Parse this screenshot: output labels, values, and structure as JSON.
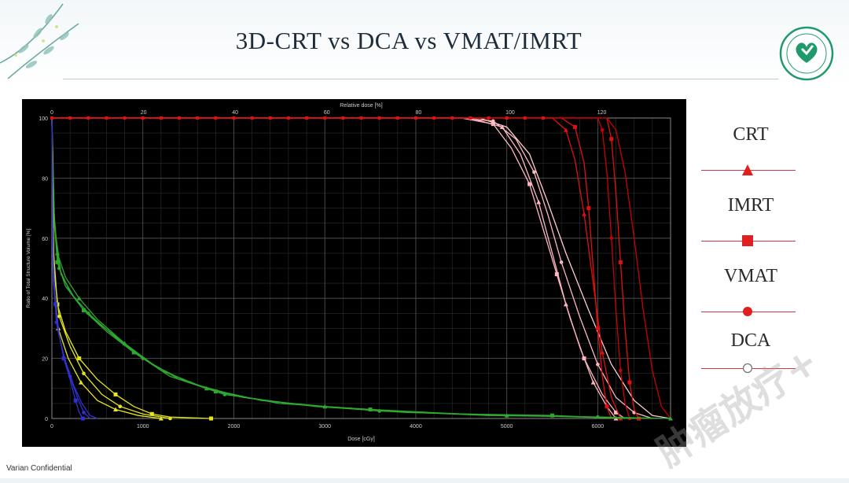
{
  "slide": {
    "title": "3D-CRT vs DCA vs VMAT/IMRT",
    "footer": "Varian Confidential",
    "watermark": "肿瘤放疗+",
    "logo_name": "hospital-logo"
  },
  "legend": {
    "items": [
      {
        "label": "CRT",
        "marker": "triangle",
        "color": "#e02020"
      },
      {
        "label": "IMRT",
        "marker": "square",
        "color": "#e02020"
      },
      {
        "label": "VMAT",
        "marker": "circle",
        "color": "#e02020"
      },
      {
        "label": "DCA",
        "marker": "circle-open",
        "color": "#e02020"
      }
    ]
  },
  "chart_data": {
    "type": "line",
    "title": "",
    "xlabel": "Dose [cGy]",
    "ylabel": "Ratio of Total Structure Volume [%]",
    "x2label": "Relative dose [%]",
    "xlim": [
      0,
      6800
    ],
    "ylim": [
      0,
      100
    ],
    "x_ticks": [
      0,
      1000,
      2000,
      3000,
      4000,
      5000,
      6000
    ],
    "y_ticks": [
      0,
      20,
      40,
      60,
      80,
      100
    ],
    "x2lim": [
      0,
      135
    ],
    "x2_ticks": [
      0,
      20,
      40,
      60,
      80,
      100,
      120
    ],
    "grid": true,
    "series": [
      {
        "color": "#ffb6c1",
        "marker": "circle",
        "points": [
          [
            0,
            100
          ],
          [
            4500,
            100
          ],
          [
            4850,
            99
          ],
          [
            5100,
            93
          ],
          [
            5300,
            82
          ],
          [
            5450,
            68
          ],
          [
            5600,
            52
          ],
          [
            5800,
            34
          ],
          [
            6000,
            18
          ],
          [
            6200,
            7
          ],
          [
            6400,
            2
          ],
          [
            6600,
            0
          ]
        ]
      },
      {
        "color": "#ffb6c1",
        "marker": "square",
        "points": [
          [
            0,
            100
          ],
          [
            4500,
            100
          ],
          [
            4850,
            98
          ],
          [
            5050,
            90
          ],
          [
            5250,
            78
          ],
          [
            5400,
            63
          ],
          [
            5550,
            48
          ],
          [
            5700,
            33
          ],
          [
            5850,
            20
          ],
          [
            6050,
            8
          ],
          [
            6200,
            2
          ],
          [
            6300,
            0
          ]
        ]
      },
      {
        "color": "#ffb6c1",
        "marker": "triangle",
        "points": [
          [
            0,
            100
          ],
          [
            4600,
            100
          ],
          [
            4950,
            97
          ],
          [
            5150,
            88
          ],
          [
            5350,
            72
          ],
          [
            5500,
            55
          ],
          [
            5650,
            38
          ],
          [
            5800,
            24
          ],
          [
            5950,
            12
          ],
          [
            6100,
            4
          ],
          [
            6200,
            0
          ]
        ]
      },
      {
        "color": "#ffcccc",
        "marker": "none",
        "points": [
          [
            0,
            100
          ],
          [
            4700,
            100
          ],
          [
            5000,
            97
          ],
          [
            5250,
            88
          ],
          [
            5450,
            72
          ],
          [
            5650,
            55
          ],
          [
            5900,
            36
          ],
          [
            6150,
            18
          ],
          [
            6400,
            6
          ],
          [
            6600,
            1
          ],
          [
            6800,
            0
          ]
        ]
      },
      {
        "color": "#e01010",
        "marker": "square",
        "points": [
          [
            0,
            100
          ],
          [
            5600,
            100
          ],
          [
            5750,
            97
          ],
          [
            5850,
            85
          ],
          [
            5900,
            70
          ],
          [
            5950,
            50
          ],
          [
            6000,
            30
          ],
          [
            6050,
            14
          ],
          [
            6100,
            4
          ],
          [
            6150,
            0
          ]
        ]
      },
      {
        "color": "#e01010",
        "marker": "triangle",
        "points": [
          [
            0,
            100
          ],
          [
            5500,
            100
          ],
          [
            5650,
            96
          ],
          [
            5750,
            86
          ],
          [
            5850,
            68
          ],
          [
            5950,
            45
          ],
          [
            6050,
            22
          ],
          [
            6150,
            7
          ],
          [
            6250,
            0
          ]
        ]
      },
      {
        "color": "#cc0000",
        "marker": "circle",
        "points": [
          [
            0,
            100
          ],
          [
            6000,
            100
          ],
          [
            6050,
            96
          ],
          [
            6100,
            82
          ],
          [
            6150,
            60
          ],
          [
            6200,
            36
          ],
          [
            6250,
            16
          ],
          [
            6300,
            5
          ],
          [
            6350,
            0
          ]
        ]
      },
      {
        "color": "#e01010",
        "marker": "square",
        "points": [
          [
            0,
            100
          ],
          [
            6100,
            100
          ],
          [
            6150,
            93
          ],
          [
            6200,
            75
          ],
          [
            6250,
            52
          ],
          [
            6300,
            30
          ],
          [
            6350,
            12
          ],
          [
            6400,
            3
          ],
          [
            6450,
            0
          ]
        ]
      },
      {
        "color": "#cc0000",
        "marker": "none",
        "points": [
          [
            0,
            100
          ],
          [
            6100,
            100
          ],
          [
            6200,
            96
          ],
          [
            6300,
            82
          ],
          [
            6400,
            60
          ],
          [
            6500,
            36
          ],
          [
            6600,
            16
          ],
          [
            6700,
            4
          ],
          [
            6800,
            0
          ]
        ]
      },
      {
        "color": "#2ea82e",
        "marker": "triangle",
        "points": [
          [
            0,
            100
          ],
          [
            20,
            70
          ],
          [
            60,
            55
          ],
          [
            150,
            47
          ],
          [
            300,
            40
          ],
          [
            500,
            33
          ],
          [
            800,
            25
          ],
          [
            1200,
            16
          ],
          [
            1700,
            10
          ],
          [
            2300,
            6
          ],
          [
            3000,
            4
          ],
          [
            4000,
            2
          ],
          [
            5000,
            1
          ],
          [
            6000,
            0.5
          ],
          [
            6800,
            0
          ]
        ]
      },
      {
        "color": "#2ea82e",
        "marker": "square",
        "points": [
          [
            0,
            100
          ],
          [
            20,
            68
          ],
          [
            60,
            52
          ],
          [
            150,
            44
          ],
          [
            350,
            36
          ],
          [
            600,
            29
          ],
          [
            900,
            22
          ],
          [
            1300,
            14
          ],
          [
            1800,
            9
          ],
          [
            2500,
            5
          ],
          [
            3500,
            3
          ],
          [
            4500,
            1.5
          ],
          [
            5500,
            1
          ],
          [
            6300,
            0
          ]
        ]
      },
      {
        "color": "#2ea82e",
        "marker": "circle",
        "points": [
          [
            0,
            100
          ],
          [
            20,
            66
          ],
          [
            80,
            50
          ],
          [
            200,
            42
          ],
          [
            400,
            35
          ],
          [
            700,
            27
          ],
          [
            1000,
            20
          ],
          [
            1400,
            13
          ],
          [
            1900,
            8
          ],
          [
            2600,
            5
          ],
          [
            3600,
            2.5
          ],
          [
            4800,
            1
          ],
          [
            6000,
            0.5
          ],
          [
            6600,
            0
          ]
        ]
      },
      {
        "color": "#2ea82e",
        "marker": "none",
        "points": [
          [
            0,
            100
          ],
          [
            30,
            64
          ],
          [
            100,
            48
          ],
          [
            250,
            40
          ],
          [
            500,
            32
          ],
          [
            800,
            25
          ],
          [
            1100,
            18
          ],
          [
            1500,
            12
          ],
          [
            2100,
            7
          ],
          [
            2900,
            4
          ],
          [
            3900,
            2
          ],
          [
            5200,
            1
          ],
          [
            6400,
            0
          ]
        ]
      },
      {
        "color": "#e6e61a",
        "marker": "square",
        "points": [
          [
            0,
            100
          ],
          [
            20,
            55
          ],
          [
            60,
            38
          ],
          [
            150,
            29
          ],
          [
            300,
            20
          ],
          [
            500,
            13
          ],
          [
            700,
            8
          ],
          [
            900,
            4
          ],
          [
            1100,
            1.5
          ],
          [
            1300,
            0.5
          ],
          [
            1750,
            0
          ]
        ]
      },
      {
        "color": "#e6e61a",
        "marker": "circle",
        "points": [
          [
            0,
            100
          ],
          [
            20,
            50
          ],
          [
            80,
            34
          ],
          [
            200,
            24
          ],
          [
            350,
            15
          ],
          [
            550,
            8
          ],
          [
            750,
            4
          ],
          [
            1000,
            1.5
          ],
          [
            1300,
            0
          ]
        ]
      },
      {
        "color": "#e6e61a",
        "marker": "triangle",
        "points": [
          [
            0,
            100
          ],
          [
            20,
            45
          ],
          [
            70,
            30
          ],
          [
            180,
            20
          ],
          [
            320,
            12
          ],
          [
            500,
            6
          ],
          [
            700,
            3
          ],
          [
            950,
            1
          ],
          [
            1200,
            0
          ]
        ]
      },
      {
        "color": "#3030d0",
        "marker": "square",
        "points": [
          [
            0,
            100
          ],
          [
            10,
            55
          ],
          [
            40,
            38
          ],
          [
            80,
            28
          ],
          [
            130,
            20
          ],
          [
            200,
            13
          ],
          [
            260,
            6
          ],
          [
            300,
            2
          ],
          [
            340,
            0
          ]
        ]
      },
      {
        "color": "#3030d0",
        "marker": "circle",
        "points": [
          [
            0,
            100
          ],
          [
            10,
            50
          ],
          [
            50,
            32
          ],
          [
            120,
            22
          ],
          [
            200,
            14
          ],
          [
            280,
            7
          ],
          [
            350,
            2
          ],
          [
            420,
            0
          ]
        ]
      },
      {
        "color": "#3030d0",
        "marker": "none",
        "points": [
          [
            0,
            100
          ],
          [
            15,
            46
          ],
          [
            60,
            30
          ],
          [
            140,
            20
          ],
          [
            240,
            11
          ],
          [
            330,
            5
          ],
          [
            420,
            1
          ],
          [
            500,
            0
          ]
        ]
      }
    ]
  }
}
